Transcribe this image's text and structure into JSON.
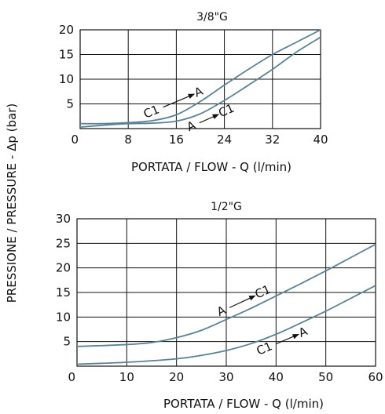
{
  "ylabel": "PRESSIONE / PRESSURE - Δp (bar)",
  "colors": {
    "curve": "#5b8294",
    "grid": "#111111"
  },
  "chart_data": [
    {
      "type": "line",
      "title": "3/8\"G",
      "xlabel": "PORTATA / FLOW - Q (l/min)",
      "xlim": [
        0,
        40
      ],
      "ylim": [
        0,
        20
      ],
      "xticks": [
        0,
        8,
        16,
        24,
        32,
        40
      ],
      "yticks": [
        5,
        10,
        15,
        20
      ],
      "grid": true,
      "series": [
        {
          "name": "C1-A",
          "points": [
            [
              0,
              1.0
            ],
            [
              4,
              1.0
            ],
            [
              8,
              1.2
            ],
            [
              12,
              1.6
            ],
            [
              16,
              2.8
            ],
            [
              20,
              5.5
            ],
            [
              24,
              8.8
            ],
            [
              28,
              12.0
            ],
            [
              32,
              15.0
            ],
            [
              36,
              17.5
            ],
            [
              40,
              20.0
            ]
          ]
        },
        {
          "name": "A-C1",
          "points": [
            [
              0,
              0.3
            ],
            [
              4,
              0.7
            ],
            [
              8,
              1.0
            ],
            [
              12,
              1.1
            ],
            [
              16,
              1.5
            ],
            [
              20,
              3.0
            ],
            [
              24,
              5.7
            ],
            [
              28,
              8.8
            ],
            [
              32,
              12.0
            ],
            [
              36,
              15.5
            ],
            [
              40,
              18.5
            ]
          ]
        }
      ],
      "annotations": [
        {
          "from": "C1",
          "to": "A",
          "curve": "upper"
        },
        {
          "from": "A",
          "to": "C1",
          "curve": "lower"
        }
      ]
    },
    {
      "type": "line",
      "title": "1/2\"G",
      "xlabel": "PORTATA / FLOW - Q (l/min)",
      "xlim": [
        0,
        60
      ],
      "ylim": [
        0,
        30
      ],
      "xticks": [
        0,
        10,
        20,
        30,
        40,
        50,
        60
      ],
      "yticks": [
        5,
        10,
        15,
        20,
        25,
        30
      ],
      "grid": true,
      "series": [
        {
          "name": "A-C1",
          "points": [
            [
              0,
              4.0
            ],
            [
              10,
              4.4
            ],
            [
              15,
              4.8
            ],
            [
              20,
              5.8
            ],
            [
              25,
              7.3
            ],
            [
              30,
              9.5
            ],
            [
              35,
              11.8
            ],
            [
              40,
              14.3
            ],
            [
              45,
              16.8
            ],
            [
              50,
              19.4
            ],
            [
              55,
              22.1
            ],
            [
              60,
              24.8
            ]
          ]
        },
        {
          "name": "C1-A",
          "points": [
            [
              0,
              0.4
            ],
            [
              10,
              0.8
            ],
            [
              20,
              1.5
            ],
            [
              25,
              2.2
            ],
            [
              30,
              3.2
            ],
            [
              35,
              4.6
            ],
            [
              40,
              6.5
            ],
            [
              45,
              8.8
            ],
            [
              50,
              11.2
            ],
            [
              55,
              13.8
            ],
            [
              60,
              16.4
            ]
          ]
        }
      ],
      "annotations": [
        {
          "from": "A",
          "to": "C1",
          "curve": "upper"
        },
        {
          "from": "C1",
          "to": "A",
          "curve": "lower"
        }
      ]
    }
  ]
}
